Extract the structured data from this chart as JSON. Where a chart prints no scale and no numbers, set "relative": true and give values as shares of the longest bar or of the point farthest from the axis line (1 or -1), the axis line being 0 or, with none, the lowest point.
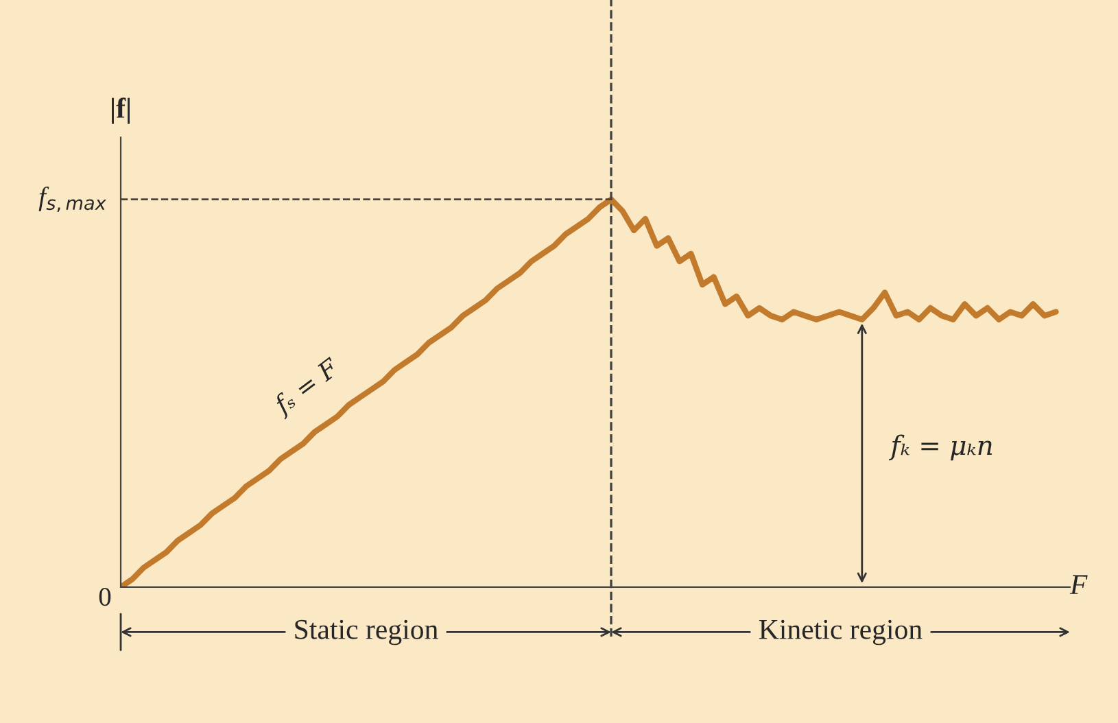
{
  "chart_data": {
    "type": "line",
    "relative": true,
    "xlabel": "F",
    "ylabel": "|f|",
    "color": "#c27a2c",
    "categories": [
      null,
      null,
      null,
      null,
      null,
      null,
      null,
      null,
      null,
      null,
      null,
      null,
      null,
      null,
      null,
      null,
      null,
      null,
      null,
      null,
      null,
      null,
      null,
      null,
      null,
      null,
      null,
      null,
      null,
      null,
      null,
      null,
      null,
      null,
      null,
      null,
      null,
      null,
      null,
      null,
      null,
      null,
      null,
      null,
      null,
      null,
      null,
      null,
      null,
      null,
      null,
      null,
      null,
      null,
      null,
      null,
      null,
      null,
      null,
      null,
      null,
      null,
      null,
      null,
      null,
      null,
      null,
      null,
      null,
      null,
      null,
      null,
      null,
      null,
      null,
      null,
      null,
      null,
      null,
      null,
      null,
      null,
      null
    ],
    "values": [
      0,
      0.02,
      0.05,
      0.07,
      0.09,
      0.12,
      0.14,
      0.16,
      0.19,
      0.21,
      0.23,
      0.26,
      0.28,
      0.3,
      0.33,
      0.35,
      0.37,
      0.4,
      0.42,
      0.44,
      0.47,
      0.49,
      0.51,
      0.53,
      0.56,
      0.58,
      0.6,
      0.63,
      0.65,
      0.67,
      0.7,
      0.72,
      0.74,
      0.77,
      0.79,
      0.81,
      0.84,
      0.86,
      0.88,
      0.91,
      0.93,
      0.95,
      0.98,
      1,
      0.97,
      0.92,
      0.95,
      0.88,
      0.9,
      0.84,
      0.86,
      0.78,
      0.8,
      0.73,
      0.75,
      0.7,
      0.72,
      0.7,
      0.69,
      0.71,
      0.7,
      0.69,
      0.7,
      0.71,
      0.7,
      0.69,
      0.72,
      0.76,
      0.7,
      0.71,
      0.69,
      0.72,
      0.7,
      0.69,
      0.73,
      0.7,
      0.72,
      0.69,
      0.71,
      0.7,
      0.73,
      0.7,
      0.71
    ],
    "ref_lines": [
      {
        "axis": "y",
        "value": 1,
        "label": "f$_{s,max}$",
        "line_style": "dashed"
      }
    ],
    "annotations": [
      "fₛ = F",
      "fₖ = μₖn",
      "Static region",
      "Kinetic region",
      "0"
    ]
  }
}
